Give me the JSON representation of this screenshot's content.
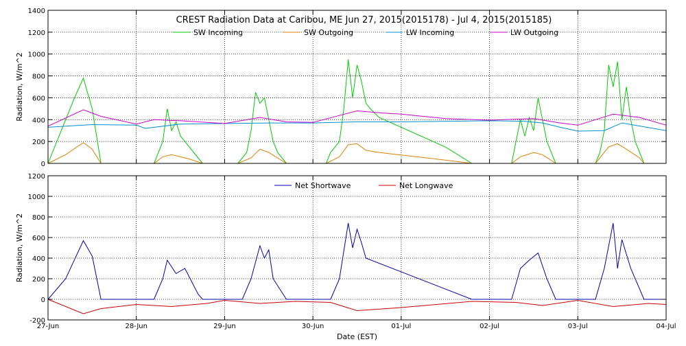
{
  "chart_data": [
    {
      "type": "line",
      "title": "CREST Radiation Data at Caribou, ME   Jun 27, 2015(2015178) - Jul  4, 2015(2015185)",
      "ylabel": "Radiation, W/m^2",
      "xlabel": "",
      "x_range_days": [
        0,
        7
      ],
      "ylim": [
        0,
        1400
      ],
      "yticks": [
        0,
        200,
        400,
        600,
        800,
        1000,
        1200,
        1400
      ],
      "grid": true,
      "legend_position": "top",
      "series": [
        {
          "name": "SW Incoming",
          "color": "#00cc00",
          "points": [
            [
              0,
              0
            ],
            [
              0.1,
              200
            ],
            [
              0.3,
              600
            ],
            [
              0.4,
              780
            ],
            [
              0.5,
              500
            ],
            [
              0.6,
              0
            ],
            [
              1.2,
              0
            ],
            [
              1.3,
              200
            ],
            [
              1.35,
              500
            ],
            [
              1.4,
              300
            ],
            [
              1.45,
              380
            ],
            [
              1.5,
              250
            ],
            [
              1.55,
              200
            ],
            [
              1.6,
              150
            ],
            [
              1.7,
              50
            ],
            [
              1.75,
              0
            ],
            [
              2.15,
              0
            ],
            [
              2.25,
              100
            ],
            [
              2.3,
              300
            ],
            [
              2.35,
              650
            ],
            [
              2.4,
              550
            ],
            [
              2.45,
              600
            ],
            [
              2.5,
              400
            ],
            [
              2.55,
              200
            ],
            [
              2.6,
              100
            ],
            [
              2.7,
              0
            ],
            [
              3.15,
              0
            ],
            [
              3.2,
              100
            ],
            [
              3.3,
              200
            ],
            [
              3.35,
              500
            ],
            [
              3.4,
              950
            ],
            [
              3.45,
              600
            ],
            [
              3.5,
              900
            ],
            [
              3.55,
              750
            ],
            [
              3.6,
              550
            ],
            [
              3.65,
              500
            ],
            [
              3.75,
              420
            ],
            [
              4.5,
              150
            ],
            [
              4.8,
              0
            ],
            [
              5.25,
              0
            ],
            [
              5.3,
              200
            ],
            [
              5.35,
              400
            ],
            [
              5.4,
              250
            ],
            [
              5.45,
              420
            ],
            [
              5.5,
              300
            ],
            [
              5.55,
              600
            ],
            [
              5.6,
              400
            ],
            [
              5.65,
              200
            ],
            [
              5.75,
              0
            ],
            [
              6.2,
              0
            ],
            [
              6.25,
              100
            ],
            [
              6.3,
              300
            ],
            [
              6.35,
              900
            ],
            [
              6.4,
              700
            ],
            [
              6.45,
              930
            ],
            [
              6.5,
              400
            ],
            [
              6.55,
              700
            ],
            [
              6.6,
              400
            ],
            [
              6.65,
              200
            ],
            [
              6.7,
              100
            ],
            [
              6.75,
              0
            ],
            [
              7,
              0
            ]
          ]
        },
        {
          "name": "SW Outgoing",
          "color": "#e08000",
          "points": [
            [
              0,
              0
            ],
            [
              0.2,
              80
            ],
            [
              0.4,
              190
            ],
            [
              0.5,
              130
            ],
            [
              0.6,
              0
            ],
            [
              1.2,
              0
            ],
            [
              1.3,
              60
            ],
            [
              1.4,
              80
            ],
            [
              1.6,
              40
            ],
            [
              1.75,
              0
            ],
            [
              2.15,
              0
            ],
            [
              2.3,
              50
            ],
            [
              2.4,
              130
            ],
            [
              2.5,
              100
            ],
            [
              2.7,
              0
            ],
            [
              3.15,
              0
            ],
            [
              3.3,
              60
            ],
            [
              3.4,
              170
            ],
            [
              3.5,
              180
            ],
            [
              3.6,
              120
            ],
            [
              3.75,
              100
            ],
            [
              4.5,
              30
            ],
            [
              4.8,
              0
            ],
            [
              5.25,
              0
            ],
            [
              5.35,
              60
            ],
            [
              5.5,
              100
            ],
            [
              5.6,
              80
            ],
            [
              5.75,
              0
            ],
            [
              6.2,
              0
            ],
            [
              6.35,
              150
            ],
            [
              6.45,
              180
            ],
            [
              6.55,
              130
            ],
            [
              6.7,
              50
            ],
            [
              6.75,
              0
            ],
            [
              7,
              0
            ]
          ]
        },
        {
          "name": "LW Incoming",
          "color": "#0090d0",
          "points": [
            [
              0,
              330
            ],
            [
              0.5,
              355
            ],
            [
              1,
              350
            ],
            [
              1.1,
              320
            ],
            [
              1.5,
              360
            ],
            [
              2,
              365
            ],
            [
              2.5,
              370
            ],
            [
              3,
              370
            ],
            [
              3.5,
              380
            ],
            [
              4,
              380
            ],
            [
              4.5,
              385
            ],
            [
              5,
              390
            ],
            [
              5.4,
              385
            ],
            [
              5.6,
              370
            ],
            [
              5.8,
              330
            ],
            [
              6,
              295
            ],
            [
              6.3,
              300
            ],
            [
              6.5,
              370
            ],
            [
              7,
              300
            ]
          ]
        },
        {
          "name": "LW Outgoing",
          "color": "#cc00cc",
          "points": [
            [
              0,
              340
            ],
            [
              0.4,
              490
            ],
            [
              0.6,
              430
            ],
            [
              1,
              360
            ],
            [
              1.2,
              400
            ],
            [
              1.5,
              390
            ],
            [
              2,
              365
            ],
            [
              2.4,
              420
            ],
            [
              2.7,
              380
            ],
            [
              3,
              375
            ],
            [
              3.5,
              480
            ],
            [
              3.8,
              460
            ],
            [
              4,
              450
            ],
            [
              4.5,
              410
            ],
            [
              5,
              395
            ],
            [
              5.5,
              410
            ],
            [
              5.8,
              370
            ],
            [
              6,
              350
            ],
            [
              6.4,
              450
            ],
            [
              6.7,
              420
            ],
            [
              7,
              350
            ]
          ]
        }
      ]
    },
    {
      "type": "line",
      "ylabel": "Radiation, W/m^2",
      "xlabel": "Date (EST)",
      "x_range_days": [
        0,
        7
      ],
      "ylim": [
        -200,
        1200
      ],
      "yticks": [
        -200,
        0,
        200,
        400,
        600,
        800,
        1000,
        1200
      ],
      "grid": true,
      "legend_position": "top",
      "xtick_labels": [
        "27-Jun",
        "28-Jun",
        "29-Jun",
        "30-Jun",
        "01-Jul",
        "02-Jul",
        "03-Jul",
        "04-Jul"
      ],
      "series": [
        {
          "name": "Net Shortwave",
          "color": "#0000aa",
          "points": [
            [
              0,
              0
            ],
            [
              0.2,
              200
            ],
            [
              0.4,
              570
            ],
            [
              0.5,
              420
            ],
            [
              0.6,
              0
            ],
            [
              1.2,
              0
            ],
            [
              1.3,
              200
            ],
            [
              1.35,
              380
            ],
            [
              1.45,
              250
            ],
            [
              1.55,
              300
            ],
            [
              1.7,
              50
            ],
            [
              1.75,
              0
            ],
            [
              2.2,
              0
            ],
            [
              2.3,
              200
            ],
            [
              2.4,
              520
            ],
            [
              2.45,
              400
            ],
            [
              2.5,
              480
            ],
            [
              2.55,
              200
            ],
            [
              2.7,
              0
            ],
            [
              3.2,
              0
            ],
            [
              3.3,
              200
            ],
            [
              3.4,
              740
            ],
            [
              3.45,
              500
            ],
            [
              3.5,
              680
            ],
            [
              3.55,
              550
            ],
            [
              3.6,
              400
            ],
            [
              4.8,
              0
            ],
            [
              5.25,
              0
            ],
            [
              5.35,
              300
            ],
            [
              5.45,
              380
            ],
            [
              5.55,
              450
            ],
            [
              5.65,
              200
            ],
            [
              5.75,
              0
            ],
            [
              6.2,
              0
            ],
            [
              6.3,
              300
            ],
            [
              6.4,
              740
            ],
            [
              6.45,
              300
            ],
            [
              6.5,
              580
            ],
            [
              6.6,
              300
            ],
            [
              6.75,
              0
            ],
            [
              7,
              0
            ]
          ]
        },
        {
          "name": "Net Longwave",
          "color": "#cc0000",
          "points": [
            [
              0,
              0
            ],
            [
              0.4,
              -140
            ],
            [
              0.6,
              -90
            ],
            [
              1,
              -50
            ],
            [
              1.4,
              -70
            ],
            [
              1.8,
              -40
            ],
            [
              2,
              -10
            ],
            [
              2.4,
              -40
            ],
            [
              2.8,
              -20
            ],
            [
              3.2,
              -30
            ],
            [
              3.5,
              -110
            ],
            [
              4,
              -80
            ],
            [
              4.8,
              -20
            ],
            [
              5.3,
              -30
            ],
            [
              5.6,
              -60
            ],
            [
              6,
              -10
            ],
            [
              6.4,
              -70
            ],
            [
              6.8,
              -40
            ],
            [
              7,
              -50
            ]
          ]
        }
      ]
    }
  ]
}
